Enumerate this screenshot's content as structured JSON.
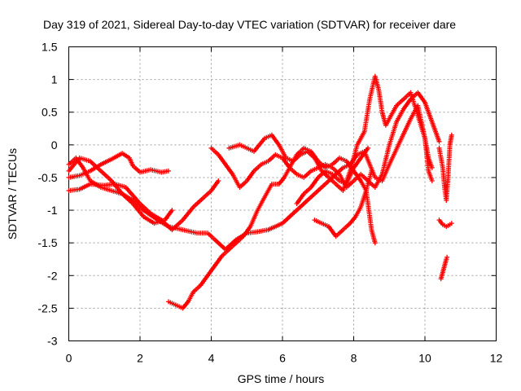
{
  "chart_data": {
    "type": "scatter",
    "title": "Day 319 of 2021, Sidereal Day-to-day VTEC variation (SDTVAR) for receiver dare",
    "xlabel": "GPS time / hours",
    "ylabel": "SDTVAR / TECUs",
    "xlim": [
      0,
      12
    ],
    "ylim": [
      -3,
      1.5
    ],
    "xticks": [
      0,
      2,
      4,
      6,
      8,
      10,
      12
    ],
    "xtick_labels": [
      "0",
      "2",
      "4",
      "6",
      "8",
      "10",
      "12"
    ],
    "yticks": [
      -3,
      -2.5,
      -2,
      -1.5,
      -1,
      -0.5,
      0,
      0.5,
      1,
      1.5
    ],
    "ytick_labels": [
      "-3",
      "-2.5",
      "-2",
      "-1.5",
      "-1",
      "-0.5",
      "0",
      "0.5",
      "1",
      "1.5"
    ],
    "grid": true,
    "marker": "+",
    "color": "#ff0000",
    "series": [
      {
        "name": "track-1",
        "points": [
          [
            0,
            -0.7
          ],
          [
            0.3,
            -0.68
          ],
          [
            0.6,
            -0.6
          ],
          [
            1.0,
            -0.62
          ],
          [
            1.3,
            -0.6
          ],
          [
            1.6,
            -0.65
          ],
          [
            2.0,
            -0.9
          ],
          [
            2.3,
            -1.05
          ],
          [
            2.6,
            -1.15
          ],
          [
            2.9,
            -1.3
          ],
          [
            3.2,
            -1.15
          ],
          [
            3.5,
            -0.95
          ],
          [
            3.8,
            -0.8
          ],
          [
            4.0,
            -0.7
          ],
          [
            4.2,
            -0.55
          ]
        ]
      },
      {
        "name": "track-2",
        "points": [
          [
            0,
            -0.5
          ],
          [
            0.3,
            -0.47
          ],
          [
            0.6,
            -0.4
          ],
          [
            0.9,
            -0.3
          ],
          [
            1.2,
            -0.22
          ],
          [
            1.5,
            -0.13
          ],
          [
            1.7,
            -0.2
          ],
          [
            1.8,
            -0.32
          ],
          [
            2.0,
            -0.42
          ],
          [
            2.3,
            -0.38
          ],
          [
            2.6,
            -0.42
          ],
          [
            2.8,
            -0.4
          ]
        ]
      },
      {
        "name": "track-3",
        "points": [
          [
            0,
            -0.4
          ],
          [
            0.3,
            -0.2
          ],
          [
            0.6,
            -0.25
          ],
          [
            0.9,
            -0.4
          ],
          [
            1.2,
            -0.55
          ],
          [
            1.5,
            -0.75
          ],
          [
            1.8,
            -0.85
          ],
          [
            2.1,
            -1.0
          ],
          [
            2.5,
            -1.15
          ],
          [
            2.8,
            -1.25
          ],
          [
            3.2,
            -1.3
          ],
          [
            3.6,
            -1.35
          ],
          [
            3.9,
            -1.35
          ],
          [
            4.1,
            -1.45
          ],
          [
            4.4,
            -1.6
          ],
          [
            4.7,
            -1.45
          ],
          [
            5.0,
            -1.35
          ],
          [
            5.3,
            -1.33
          ],
          [
            5.6,
            -1.3
          ],
          [
            6.0,
            -1.2
          ],
          [
            6.4,
            -1.0
          ],
          [
            6.8,
            -0.8
          ],
          [
            7.1,
            -0.65
          ],
          [
            7.4,
            -0.5
          ],
          [
            7.7,
            -0.35
          ],
          [
            7.9,
            -0.3
          ],
          [
            8.1,
            -0.15
          ],
          [
            8.3,
            -0.1
          ],
          [
            8.45,
            -0.3
          ],
          [
            8.6,
            -0.5
          ],
          [
            8.8,
            -0.55
          ],
          [
            9.0,
            -0.3
          ],
          [
            9.3,
            0.05
          ],
          [
            9.6,
            0.4
          ],
          [
            9.8,
            0.6
          ],
          [
            10.0,
            0.1
          ],
          [
            10.1,
            -0.4
          ],
          [
            10.2,
            -0.55
          ]
        ]
      },
      {
        "name": "track-4",
        "points": [
          [
            0,
            -0.3
          ],
          [
            0.2,
            -0.2
          ],
          [
            0.4,
            -0.35
          ],
          [
            0.6,
            -0.55
          ],
          [
            0.9,
            -0.65
          ],
          [
            1.2,
            -0.7
          ],
          [
            1.5,
            -0.75
          ],
          [
            1.8,
            -0.9
          ],
          [
            2.1,
            -1.1
          ],
          [
            2.4,
            -1.2
          ],
          [
            2.7,
            -1.15
          ],
          [
            2.9,
            -1.0
          ]
        ]
      },
      {
        "name": "track-5",
        "points": [
          [
            2.8,
            -2.4
          ],
          [
            3.0,
            -2.45
          ],
          [
            3.2,
            -2.5
          ],
          [
            3.35,
            -2.4
          ],
          [
            3.5,
            -2.25
          ],
          [
            3.7,
            -2.15
          ],
          [
            3.9,
            -2.0
          ],
          [
            4.1,
            -1.85
          ],
          [
            4.3,
            -1.7
          ],
          [
            4.5,
            -1.6
          ],
          [
            4.7,
            -1.5
          ],
          [
            4.9,
            -1.4
          ],
          [
            5.1,
            -1.25
          ],
          [
            5.3,
            -1.0
          ],
          [
            5.5,
            -0.8
          ],
          [
            5.7,
            -0.6
          ],
          [
            5.9,
            -0.6
          ],
          [
            6.05,
            -0.5
          ],
          [
            6.2,
            -0.35
          ],
          [
            6.4,
            -0.15
          ],
          [
            6.6,
            -0.05
          ],
          [
            6.8,
            -0.1
          ],
          [
            7.0,
            -0.25
          ],
          [
            7.2,
            -0.35
          ],
          [
            7.4,
            -0.3
          ],
          [
            7.6,
            -0.2
          ],
          [
            7.8,
            -0.25
          ],
          [
            8.0,
            -0.4
          ],
          [
            8.2,
            -0.55
          ],
          [
            8.35,
            -0.7
          ],
          [
            8.5,
            -1.3
          ],
          [
            8.6,
            -1.5
          ]
        ]
      },
      {
        "name": "track-6",
        "points": [
          [
            4.0,
            -0.05
          ],
          [
            4.2,
            -0.15
          ],
          [
            4.4,
            -0.3
          ],
          [
            4.6,
            -0.45
          ],
          [
            4.8,
            -0.65
          ],
          [
            5.0,
            -0.55
          ],
          [
            5.2,
            -0.4
          ],
          [
            5.4,
            -0.3
          ],
          [
            5.6,
            -0.25
          ],
          [
            5.8,
            -0.15
          ],
          [
            6.0,
            -0.2
          ],
          [
            6.2,
            -0.35
          ],
          [
            6.4,
            -0.45
          ],
          [
            6.6,
            -0.5
          ],
          [
            6.8,
            -0.4
          ],
          [
            7.0,
            -0.35
          ],
          [
            7.2,
            -0.3
          ],
          [
            7.4,
            -0.35
          ],
          [
            7.6,
            -0.45
          ],
          [
            7.8,
            -0.65
          ],
          [
            8.0,
            -0.55
          ],
          [
            8.2,
            -0.45
          ],
          [
            8.4,
            -0.55
          ],
          [
            8.6,
            -0.65
          ],
          [
            8.8,
            -0.45
          ],
          [
            9.0,
            0.0
          ],
          [
            9.2,
            0.35
          ],
          [
            9.4,
            0.55
          ],
          [
            9.6,
            0.7
          ],
          [
            9.8,
            0.8
          ],
          [
            10.0,
            0.65
          ],
          [
            10.2,
            0.35
          ],
          [
            10.4,
            0.05
          ]
        ]
      },
      {
        "name": "track-7",
        "points": [
          [
            4.5,
            -0.05
          ],
          [
            4.8,
            0.0
          ],
          [
            5.0,
            -0.05
          ],
          [
            5.2,
            -0.1
          ],
          [
            5.5,
            0.1
          ],
          [
            5.7,
            0.15
          ],
          [
            5.9,
            0.0
          ],
          [
            6.1,
            -0.2
          ],
          [
            6.3,
            -0.25
          ],
          [
            6.5,
            -0.15
          ],
          [
            6.7,
            -0.1
          ],
          [
            6.9,
            -0.2
          ],
          [
            7.1,
            -0.4
          ],
          [
            7.3,
            -0.5
          ],
          [
            7.5,
            -0.6
          ],
          [
            7.7,
            -0.7
          ],
          [
            7.9,
            -0.4
          ],
          [
            8.1,
            0.0
          ],
          [
            8.3,
            0.2
          ],
          [
            8.45,
            0.7
          ],
          [
            8.6,
            1.05
          ],
          [
            8.7,
            0.85
          ],
          [
            8.8,
            0.5
          ],
          [
            8.9,
            0.3
          ],
          [
            9.0,
            0.4
          ],
          [
            9.2,
            0.6
          ],
          [
            9.4,
            0.7
          ],
          [
            9.6,
            0.8
          ],
          [
            9.8,
            0.45
          ],
          [
            10.0,
            0.1
          ],
          [
            10.1,
            -0.2
          ],
          [
            10.2,
            -0.35
          ]
        ]
      },
      {
        "name": "track-8",
        "points": [
          [
            6.9,
            -1.15
          ],
          [
            7.1,
            -1.2
          ],
          [
            7.3,
            -1.25
          ],
          [
            7.5,
            -1.4
          ],
          [
            7.7,
            -1.3
          ],
          [
            7.9,
            -1.2
          ],
          [
            8.05,
            -1.1
          ],
          [
            8.2,
            -0.95
          ],
          [
            8.35,
            -0.7
          ],
          [
            8.5,
            -0.4
          ]
        ]
      },
      {
        "name": "track-9",
        "points": [
          [
            6.4,
            -0.9
          ],
          [
            6.6,
            -0.75
          ],
          [
            6.8,
            -0.65
          ],
          [
            7.0,
            -0.5
          ],
          [
            7.2,
            -0.4
          ],
          [
            7.4,
            -0.45
          ],
          [
            7.6,
            -0.55
          ],
          [
            7.8,
            -0.6
          ],
          [
            8.0,
            -0.35
          ],
          [
            8.2,
            -0.2
          ],
          [
            8.4,
            -0.05
          ]
        ]
      },
      {
        "name": "track-10",
        "points": [
          [
            10.4,
            -0.05
          ],
          [
            10.5,
            -0.35
          ],
          [
            10.55,
            -0.65
          ],
          [
            10.6,
            -0.85
          ],
          [
            10.65,
            -0.5
          ],
          [
            10.7,
            0.0
          ],
          [
            10.75,
            0.15
          ]
        ]
      },
      {
        "name": "track-11",
        "points": [
          [
            10.4,
            -1.15
          ],
          [
            10.5,
            -1.22
          ],
          [
            10.6,
            -1.25
          ],
          [
            10.7,
            -1.22
          ],
          [
            10.75,
            -1.2
          ]
        ]
      },
      {
        "name": "track-12",
        "points": [
          [
            10.45,
            -2.05
          ],
          [
            10.5,
            -1.95
          ],
          [
            10.55,
            -1.85
          ],
          [
            10.6,
            -1.75
          ],
          [
            10.62,
            -1.72
          ]
        ]
      }
    ]
  }
}
